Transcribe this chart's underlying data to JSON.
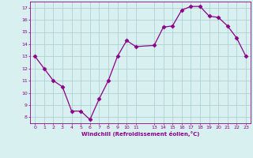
{
  "x": [
    0,
    1,
    2,
    3,
    4,
    5,
    6,
    7,
    8,
    9,
    10,
    11,
    13,
    14,
    15,
    16,
    17,
    18,
    19,
    20,
    21,
    22,
    23
  ],
  "y": [
    13.0,
    12.0,
    11.0,
    10.5,
    8.5,
    8.5,
    7.8,
    9.5,
    11.0,
    13.0,
    14.3,
    13.8,
    13.9,
    15.4,
    15.5,
    16.8,
    17.1,
    17.1,
    16.3,
    16.2,
    15.5,
    14.5,
    13.0
  ],
  "line_color": "#8B008B",
  "marker": "D",
  "marker_size": 2.5,
  "bg_color": "#d8f0f0",
  "grid_color": "#aacccc",
  "xlabel": "Windchill (Refroidissement éolien,°C)",
  "xlim": [
    -0.5,
    23.5
  ],
  "ylim": [
    7.5,
    17.5
  ],
  "yticks": [
    8,
    9,
    10,
    11,
    12,
    13,
    14,
    15,
    16,
    17
  ],
  "xticks": [
    0,
    1,
    2,
    3,
    4,
    5,
    6,
    7,
    8,
    9,
    10,
    11,
    13,
    14,
    15,
    16,
    17,
    18,
    19,
    20,
    21,
    22,
    23
  ]
}
